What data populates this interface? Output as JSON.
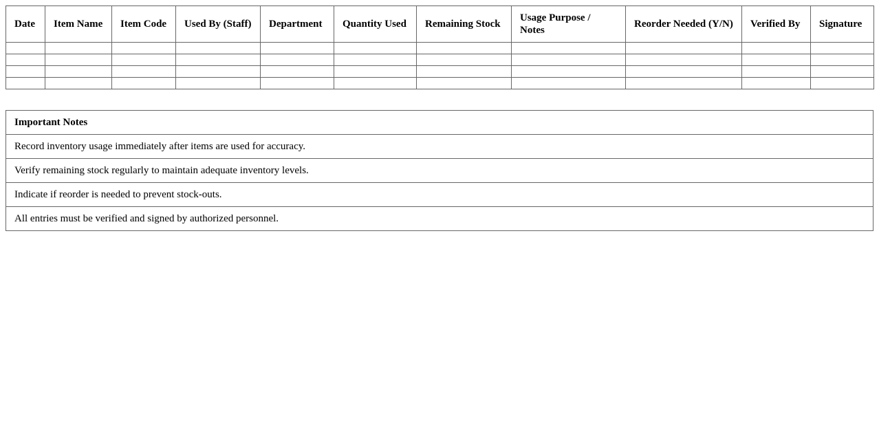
{
  "log_table": {
    "headers": [
      "Date",
      "Item Name",
      "Item Code",
      "Used By (Staff)",
      "Department",
      "Quantity Used",
      "Remaining Stock",
      "Usage Purpose / Notes",
      "Reorder Needed (Y/N)",
      "Verified By",
      "Signature"
    ],
    "empty_rows": 4
  },
  "notes": {
    "title": "Important Notes",
    "items": [
      "Record inventory usage immediately after items are used for accuracy.",
      "Verify remaining stock regularly to maintain adequate inventory levels.",
      "Indicate if reorder is needed to prevent stock-outs.",
      "All entries must be verified and signed by authorized personnel."
    ]
  }
}
